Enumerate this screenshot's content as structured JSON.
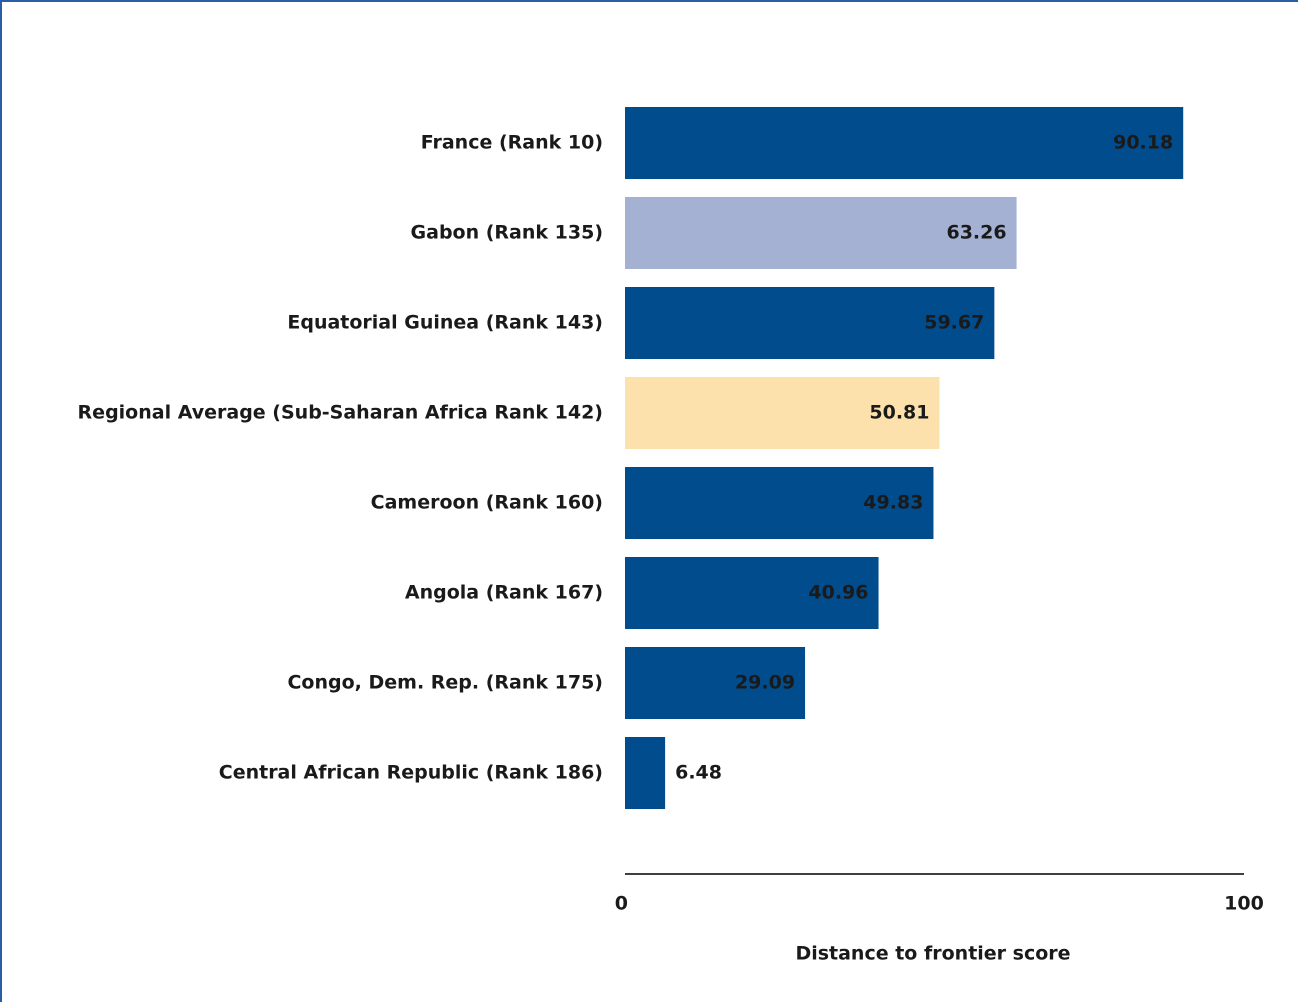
{
  "chart_data": {
    "type": "bar",
    "orientation": "horizontal",
    "x_label": "Distance to frontier score",
    "categories": [
      "France (Rank 10)",
      "Gabon (Rank 135)",
      "Equatorial Guinea (Rank 143)",
      "Regional Average (Sub-Saharan Africa Rank 142)",
      "Cameroon (Rank 160)",
      "Angola (Rank 167)",
      "Congo, Dem. Rep. (Rank 175)",
      "Central African Republic (Rank 186)"
    ],
    "values": [
      90.18,
      63.26,
      59.67,
      50.81,
      49.83,
      40.96,
      29.09,
      6.48
    ],
    "colors": [
      "#004c8c",
      "#a4b1d3",
      "#004c8c",
      "#fde1ad",
      "#004c8c",
      "#004c8c",
      "#004c8c",
      "#004c8c"
    ],
    "xlim": [
      0,
      100
    ],
    "xticks": [
      0,
      100
    ]
  }
}
